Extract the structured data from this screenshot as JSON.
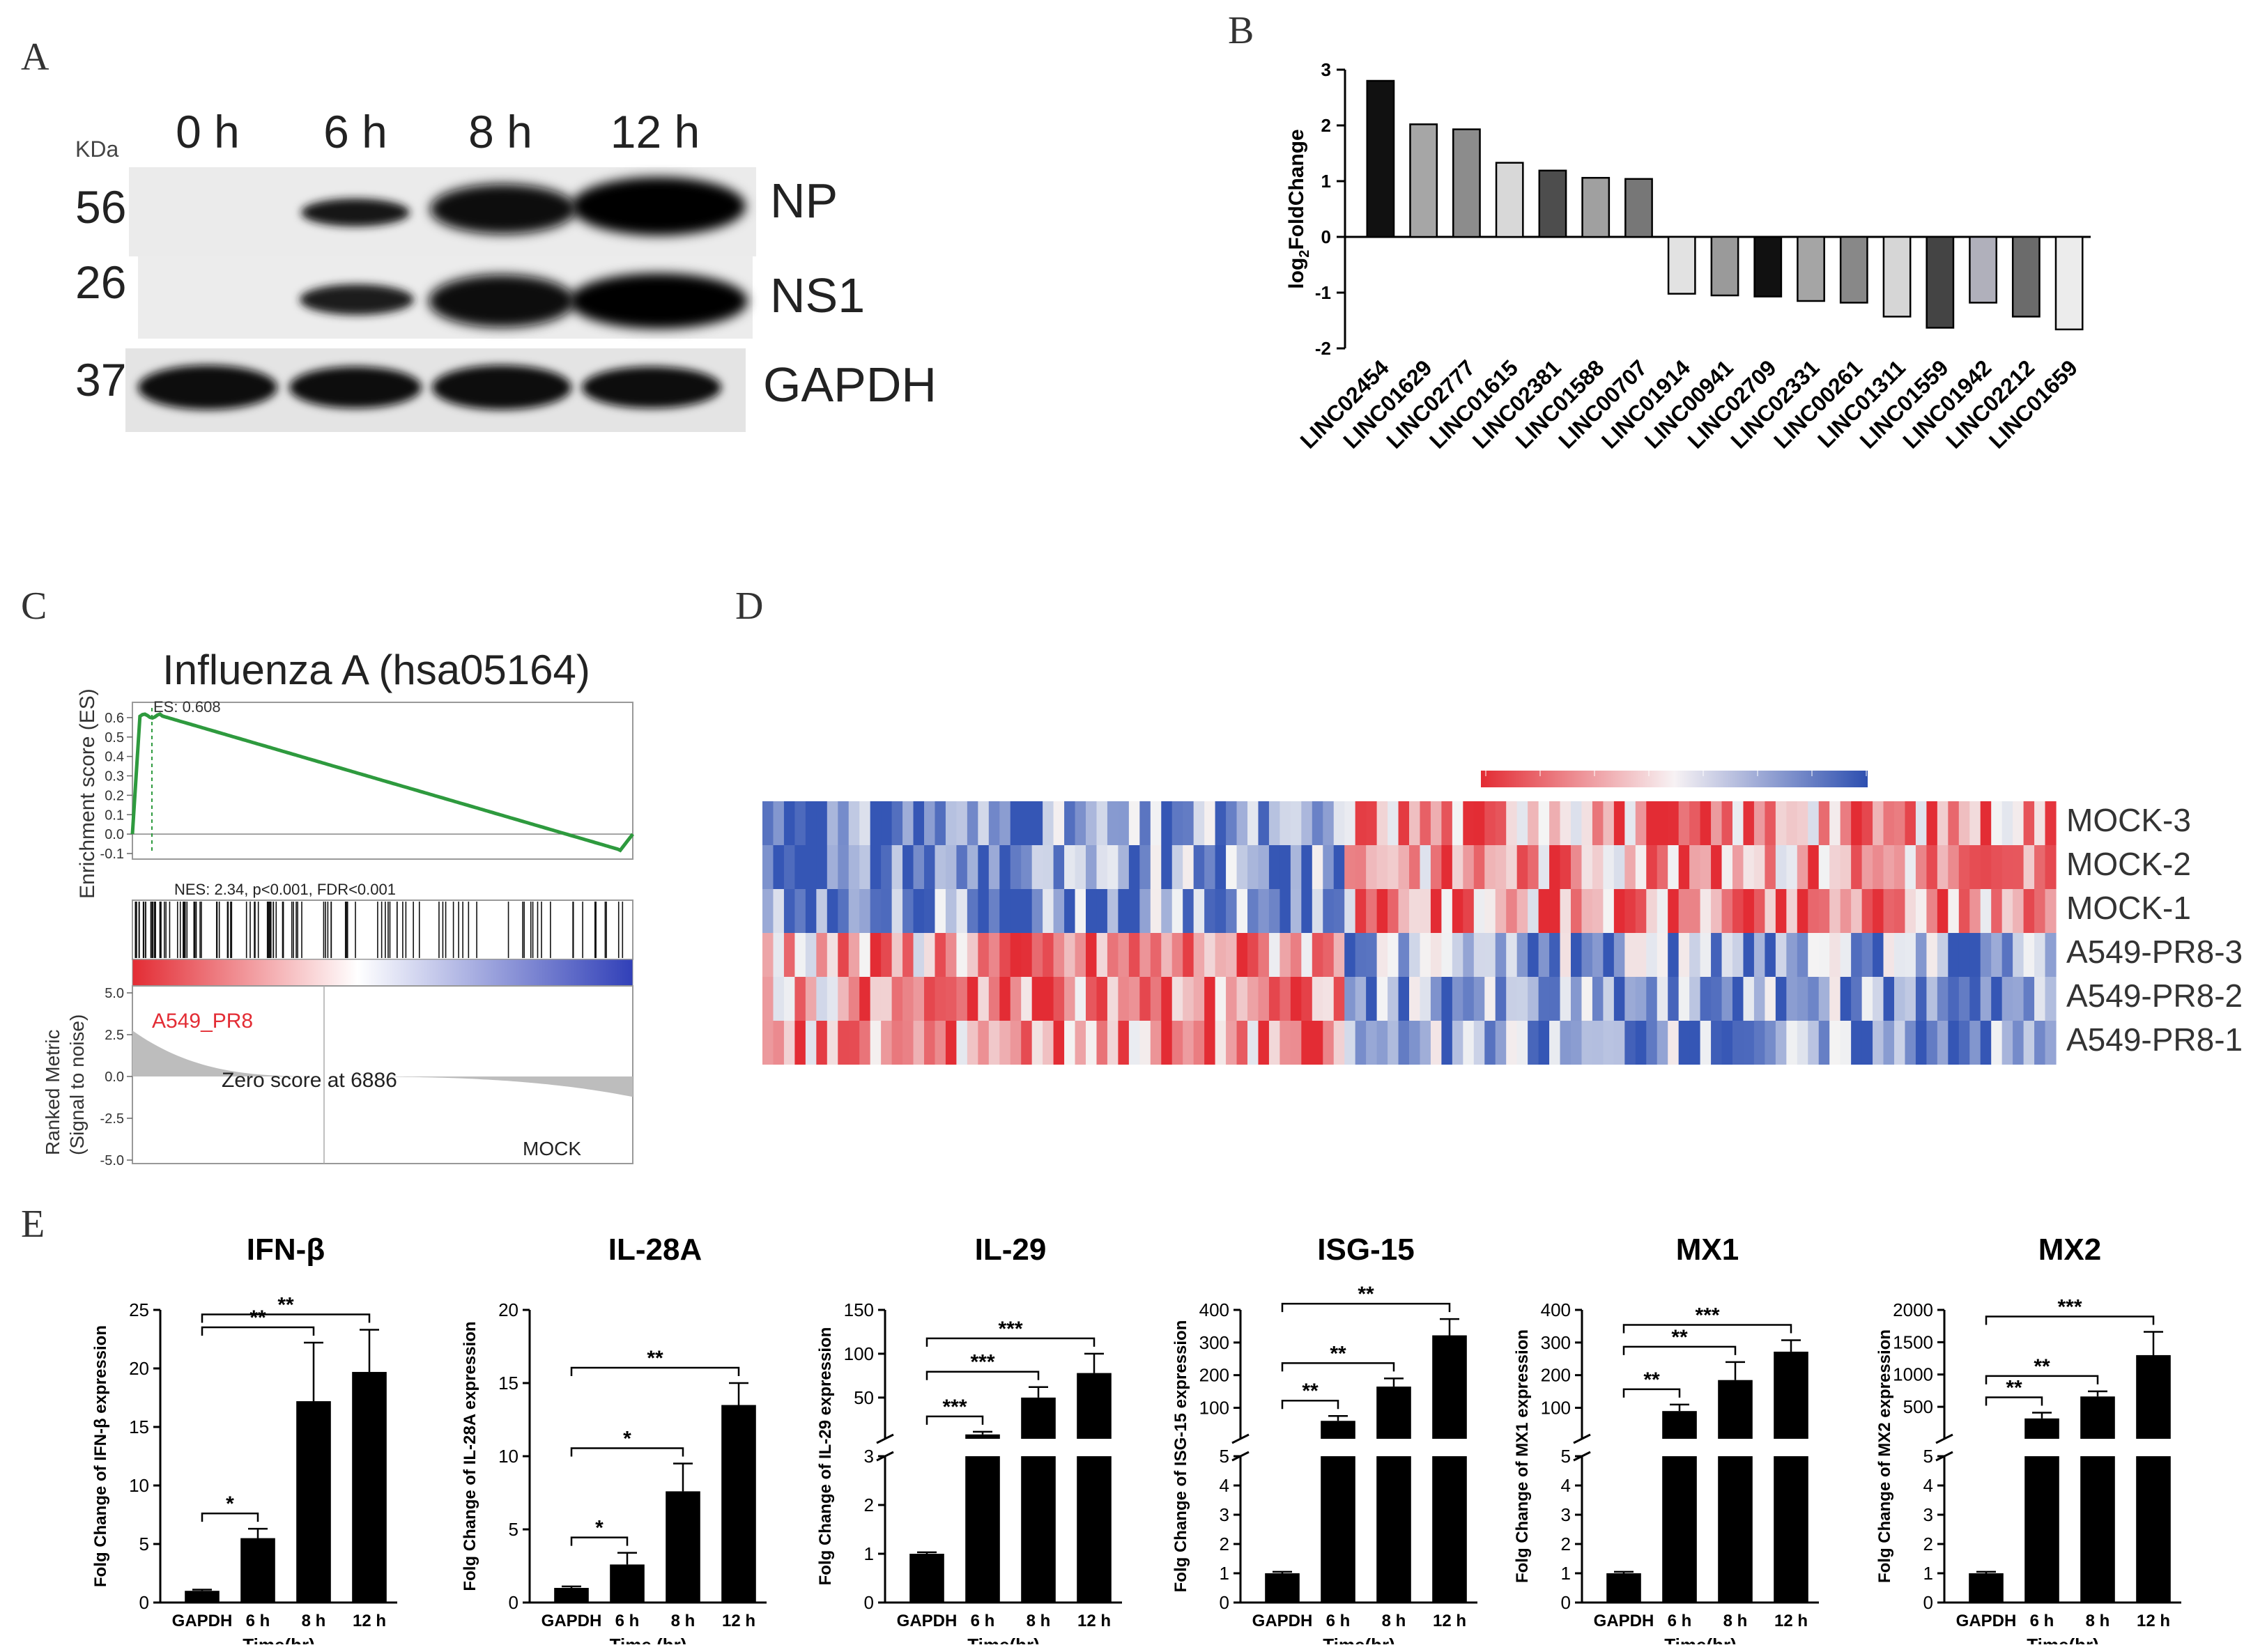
{
  "panels": {
    "A": "A",
    "B": "B",
    "C": "C",
    "D": "D",
    "E": "E"
  },
  "westernBlot": {
    "kda_label": "KDa",
    "lanes": [
      "0 h",
      "6 h",
      "8 h",
      "12 h"
    ],
    "rows": [
      {
        "mw": "56",
        "protein": "NP"
      },
      {
        "mw": "26",
        "protein": "NS1"
      },
      {
        "mw": "37",
        "protein": "GAPDH"
      }
    ]
  },
  "gsea": {
    "title": "Influenza A (hsa05164)",
    "es_label": "ES: 0.608",
    "stats": "NES: 2.34, p<0.001, FDR<0.001",
    "ylabel_es": "Enrichment score (ES)",
    "ylabel_metric": "Ranked Metric\n(Signal to noise)",
    "es_ticks": [
      "0.6",
      "0.5",
      "0.4",
      "0.3",
      "0.2",
      "0.1",
      "0.0",
      "-0.1"
    ],
    "metric_ticks": [
      "5.0",
      "2.5",
      "0.0",
      "-2.5",
      "-5.0"
    ],
    "pos_label": "A549_PR8",
    "neg_label": "MOCK",
    "zero_label": "Zero score at 6886"
  },
  "heatmap": {
    "rows": [
      "MOCK-3",
      "MOCK-2",
      "MOCK-1",
      "A549-PR8-3",
      "A549-PR8-2",
      "A549-PR8-1"
    ],
    "colors": {
      "low": "#3556b5",
      "mid": "#f4f4f4",
      "high": "#e32c34"
    }
  },
  "chart_data": [
    {
      "id": "B",
      "type": "bar",
      "ylabel": "log2FoldChange",
      "ylim": [
        -2,
        3
      ],
      "yticks": [
        -2,
        -1,
        0,
        1,
        2,
        3
      ],
      "categories": [
        "LINC02454",
        "LINC01629",
        "LINC02777",
        "LINC01615",
        "LINC02381",
        "LINC01588",
        "LINC00707",
        "LINC01914",
        "LINC00941",
        "LINC02709",
        "LINC02331",
        "LINC00261",
        "LINC01311",
        "LINC01559",
        "LINC01942",
        "LINC02212",
        "LINC01659"
      ],
      "values": [
        2.8,
        2.02,
        1.93,
        1.33,
        1.19,
        1.06,
        1.04,
        -1.02,
        -1.05,
        -1.07,
        -1.15,
        -1.18,
        -1.43,
        -1.63,
        -1.18,
        -1.43,
        -1.66
      ],
      "fills": [
        "#111111",
        "#a6a6a6",
        "#8c8c8c",
        "#d8d8d8",
        "#4d4d4d",
        "#a0a0a0",
        "#777777",
        "#e2e2e2",
        "#9a9a9a",
        "#111111",
        "#a5a5a5",
        "#888888",
        "#d6d6d6",
        "#444444",
        "#b0b0bb",
        "#6b6b6b",
        "#ececec"
      ]
    },
    {
      "id": "E1",
      "type": "bar",
      "title": "IFN-β",
      "ylabel": "Folg Change of IFN-β expression",
      "xlabel": "Time(hr)",
      "categories": [
        "GAPDH",
        "6 h",
        "8 h",
        "12 h"
      ],
      "values": [
        1,
        5.5,
        17.2,
        19.7
      ],
      "errors": [
        0.1,
        0.8,
        5.0,
        3.6
      ],
      "ylim": [
        0,
        25
      ],
      "yticks": [
        0,
        5,
        10,
        15,
        20,
        25
      ],
      "sig": [
        {
          "from": 0,
          "to": 1,
          "label": "*"
        },
        {
          "from": 0,
          "to": 2,
          "label": "**"
        },
        {
          "from": 0,
          "to": 3,
          "label": "**"
        }
      ]
    },
    {
      "id": "E2",
      "type": "bar",
      "title": "IL-28A",
      "ylabel": "Folg Change of IL-28A expression",
      "xlabel": "Time (hr)",
      "categories": [
        "GAPDH",
        "6 h",
        "8 h",
        "12 h"
      ],
      "values": [
        1,
        2.6,
        7.6,
        13.5
      ],
      "errors": [
        0.1,
        0.8,
        1.9,
        1.5
      ],
      "ylim": [
        0,
        20
      ],
      "yticks": [
        0,
        5,
        10,
        15,
        20
      ],
      "sig": [
        {
          "from": 0,
          "to": 1,
          "label": "*"
        },
        {
          "from": 0,
          "to": 2,
          "label": "*"
        },
        {
          "from": 0,
          "to": 3,
          "label": "**"
        }
      ]
    },
    {
      "id": "E3",
      "type": "bar",
      "title": "IL-29",
      "ylabel": "Folg Change of IL-29 expression",
      "xlabel": "Time(hr)",
      "categories": [
        "GAPDH",
        "6 h",
        "8 h",
        "12 h"
      ],
      "values": [
        1,
        8,
        50,
        78
      ],
      "errors": [
        0.03,
        3,
        12,
        22
      ],
      "broken": true,
      "ylim_low": [
        0,
        3
      ],
      "yticks_low": [
        0,
        1,
        2,
        3
      ],
      "ylim_high": [
        3,
        150
      ],
      "yticks_high": [
        50,
        100,
        150
      ],
      "sig": [
        {
          "from": 0,
          "to": 1,
          "label": "***"
        },
        {
          "from": 0,
          "to": 2,
          "label": "***"
        },
        {
          "from": 0,
          "to": 3,
          "label": "***"
        }
      ]
    },
    {
      "id": "E4",
      "type": "bar",
      "title": "ISG-15",
      "ylabel": "Folg Change of ISG-15 expression",
      "xlabel": "Time(hr)",
      "categories": [
        "GAPDH",
        "6 h",
        "8 h",
        "12 h"
      ],
      "values": [
        1,
        60,
        165,
        322
      ],
      "errors": [
        0.05,
        15,
        25,
        50
      ],
      "broken": true,
      "ylim_low": [
        0,
        5
      ],
      "yticks_low": [
        0,
        1,
        2,
        3,
        4,
        5
      ],
      "ylim_high": [
        5,
        400
      ],
      "yticks_high": [
        100,
        200,
        300,
        400
      ],
      "sig": [
        {
          "from": 0,
          "to": 1,
          "label": "**"
        },
        {
          "from": 0,
          "to": 2,
          "label": "**"
        },
        {
          "from": 0,
          "to": 3,
          "label": "**"
        }
      ]
    },
    {
      "id": "E5",
      "type": "bar",
      "title": "MX1",
      "ylabel": "Folg Change of MX1 expression",
      "xlabel": "Time(hr)",
      "categories": [
        "GAPDH",
        "6 h",
        "8 h",
        "12 h"
      ],
      "values": [
        1,
        90,
        185,
        272
      ],
      "errors": [
        0.05,
        20,
        55,
        35
      ],
      "broken": true,
      "ylim_low": [
        0,
        5
      ],
      "yticks_low": [
        0,
        1,
        2,
        3,
        4,
        5
      ],
      "ylim_high": [
        5,
        400
      ],
      "yticks_high": [
        100,
        200,
        300,
        400
      ],
      "sig": [
        {
          "from": 0,
          "to": 1,
          "label": "**"
        },
        {
          "from": 0,
          "to": 2,
          "label": "**"
        },
        {
          "from": 0,
          "to": 3,
          "label": "***"
        }
      ]
    },
    {
      "id": "E6",
      "type": "bar",
      "title": "MX2",
      "ylabel": "Folg Change of MX2 expression",
      "xlabel": "Time(hr)",
      "categories": [
        "GAPDH",
        "6 h",
        "8 h",
        "12 h"
      ],
      "values": [
        1,
        320,
        660,
        1300
      ],
      "errors": [
        0.05,
        90,
        80,
        360
      ],
      "broken": true,
      "ylim_low": [
        0,
        5
      ],
      "yticks_low": [
        0,
        1,
        2,
        3,
        4,
        5
      ],
      "ylim_high": [
        5,
        2000
      ],
      "yticks_high": [
        500,
        1000,
        1500,
        2000
      ],
      "sig": [
        {
          "from": 0,
          "to": 1,
          "label": "**"
        },
        {
          "from": 0,
          "to": 2,
          "label": "**"
        },
        {
          "from": 0,
          "to": 3,
          "label": "***"
        }
      ]
    }
  ]
}
